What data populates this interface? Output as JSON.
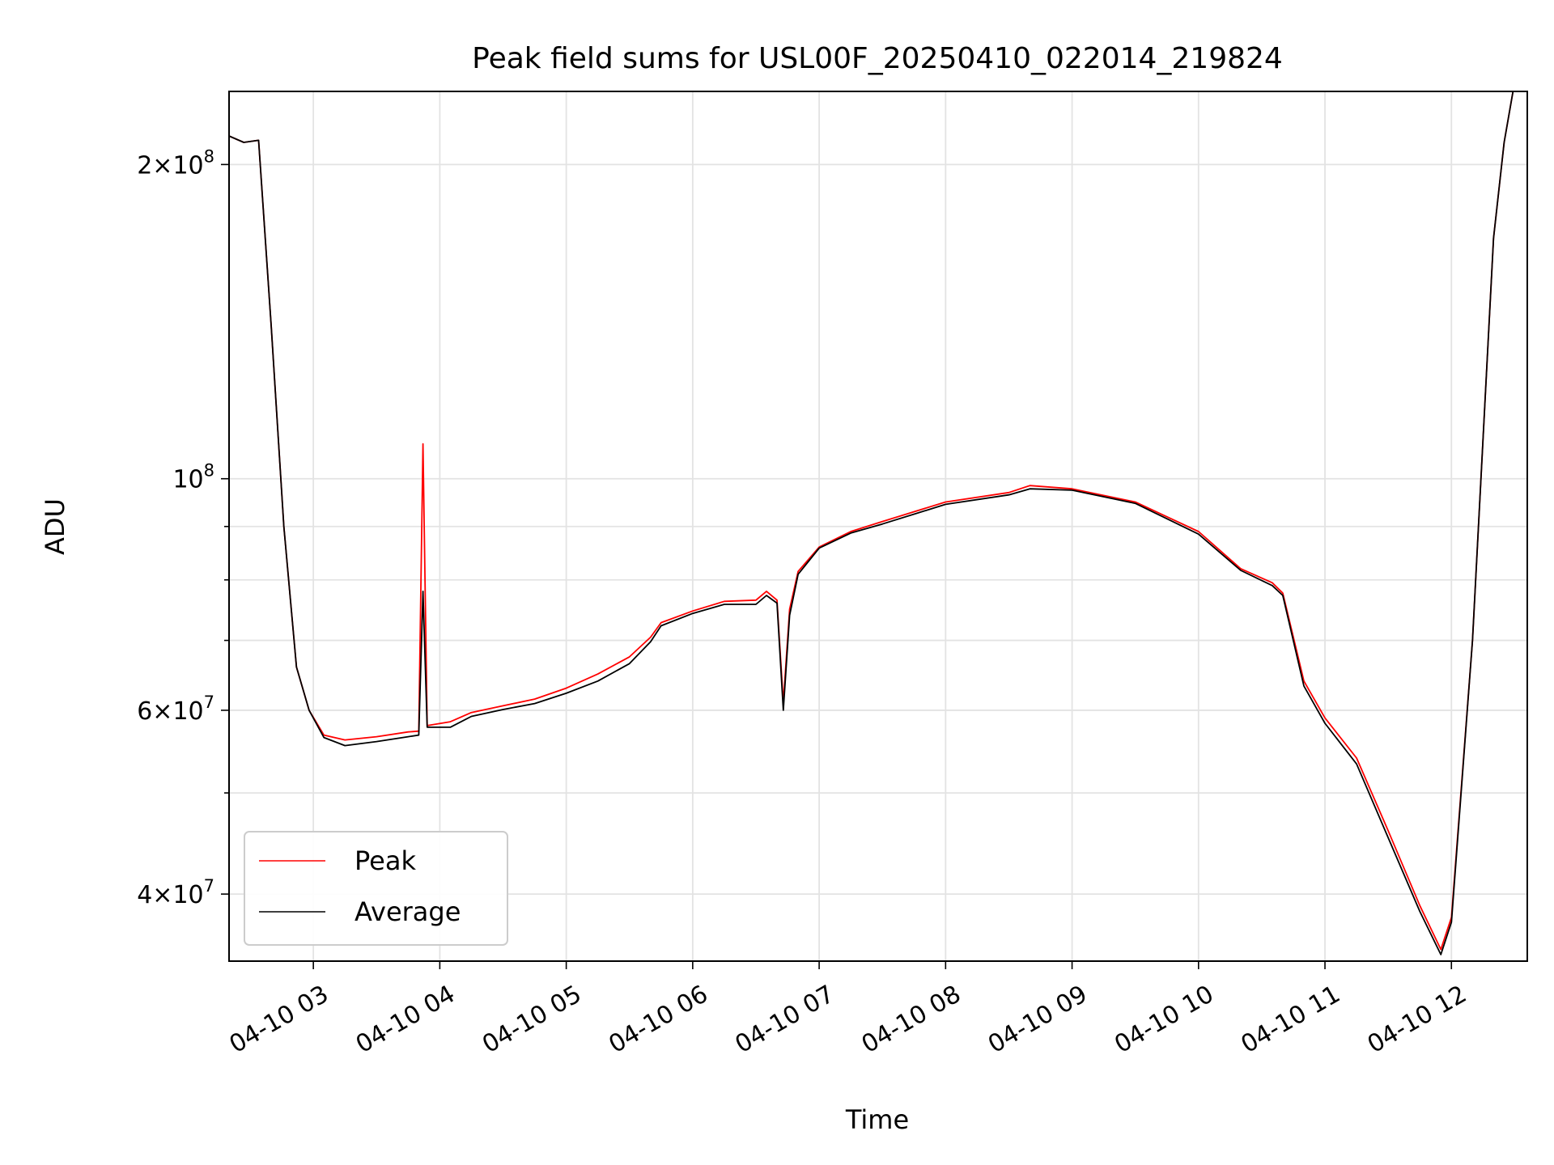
{
  "chart_data": {
    "type": "line",
    "title": "Peak field sums for USL00F_20250410_022014_219824",
    "xlabel": "Time",
    "ylabel": "ADU",
    "x_scale": "time",
    "y_scale": "log",
    "xlim": [
      "04-10 02:20",
      "04-10 12:36"
    ],
    "ylim": [
      34500000,
      235000000
    ],
    "grid": true,
    "legend_position": "lower-left",
    "x_ticks": [
      "04-10 03",
      "04-10 04",
      "04-10 05",
      "04-10 06",
      "04-10 07",
      "04-10 08",
      "04-10 09",
      "04-10 10",
      "04-10 11",
      "04-10 12"
    ],
    "x_tick_values": [
      "04-10 03:00",
      "04-10 04:00",
      "04-10 05:00",
      "04-10 06:00",
      "04-10 07:00",
      "04-10 08:00",
      "04-10 09:00",
      "04-10 10:00",
      "04-10 11:00",
      "04-10 12:00"
    ],
    "y_ticks": [
      {
        "value": 40000000,
        "mantissa": "4",
        "exponent": "7"
      },
      {
        "value": 60000000,
        "mantissa": "6",
        "exponent": "7"
      },
      {
        "value": 100000000,
        "mantissa": "",
        "exponent": "8"
      },
      {
        "value": 200000000,
        "mantissa": "2",
        "exponent": "8"
      }
    ],
    "y_minor_ticks": [
      50000000,
      70000000,
      80000000,
      90000000
    ],
    "x": [
      "04-10 02:20",
      "04-10 02:27",
      "04-10 02:34",
      "04-10 02:40",
      "04-10 02:46",
      "04-10 02:52",
      "04-10 02:58",
      "04-10 03:05",
      "04-10 03:15",
      "04-10 03:30",
      "04-10 03:45",
      "04-10 03:50",
      "04-10 03:52",
      "04-10 03:54",
      "04-10 04:05",
      "04-10 04:15",
      "04-10 04:30",
      "04-10 04:45",
      "04-10 05:00",
      "04-10 05:15",
      "04-10 05:30",
      "04-10 05:40",
      "04-10 05:45",
      "04-10 06:00",
      "04-10 06:15",
      "04-10 06:30",
      "04-10 06:35",
      "04-10 06:40",
      "04-10 06:43",
      "04-10 06:46",
      "04-10 06:50",
      "04-10 07:00",
      "04-10 07:15",
      "04-10 07:30",
      "04-10 08:00",
      "04-10 08:30",
      "04-10 08:40",
      "04-10 09:00",
      "04-10 09:30",
      "04-10 10:00",
      "04-10 10:20",
      "04-10 10:35",
      "04-10 10:40",
      "04-10 10:50",
      "04-10 11:00",
      "04-10 11:15",
      "04-10 11:30",
      "04-10 11:45",
      "04-10 11:55",
      "04-10 12:00",
      "04-10 12:10",
      "04-10 12:20",
      "04-10 12:25",
      "04-10 12:30"
    ],
    "series": [
      {
        "name": "Peak",
        "color": "#ff0000",
        "values": [
          213000000,
          210000000,
          211000000,
          140000000,
          90000000,
          66000000,
          60000000,
          56800000,
          56200000,
          56600000,
          57200000,
          57300000,
          108000000,
          58000000,
          58500000,
          59700000,
          60600000,
          61500000,
          63000000,
          65000000,
          67500000,
          70500000,
          72800000,
          74700000,
          76300000,
          76500000,
          78000000,
          76500000,
          61000000,
          75000000,
          81500000,
          86000000,
          89000000,
          91000000,
          95000000,
          97000000,
          98500000,
          97800000,
          95000000,
          89000000,
          82000000,
          79500000,
          77700000,
          64000000,
          59000000,
          54000000,
          46000000,
          39000000,
          35400000,
          38000000,
          70000000,
          170000000,
          210000000,
          240000000
        ]
      },
      {
        "name": "Average",
        "color": "#000000",
        "values": [
          213000000,
          210000000,
          211000000,
          140000000,
          90000000,
          66000000,
          60000000,
          56500000,
          55500000,
          56000000,
          56600000,
          56800000,
          78000000,
          57800000,
          57800000,
          59200000,
          60100000,
          60900000,
          62300000,
          64000000,
          66500000,
          69800000,
          72300000,
          74300000,
          75800000,
          75800000,
          77300000,
          76000000,
          60000000,
          74000000,
          81000000,
          85800000,
          88700000,
          90500000,
          94500000,
          96500000,
          97800000,
          97500000,
          94700000,
          88500000,
          81700000,
          79000000,
          77300000,
          63300000,
          58300000,
          53300000,
          45300000,
          38500000,
          35000000,
          37600000,
          70000000,
          170000000,
          210000000,
          240000000
        ]
      }
    ]
  }
}
